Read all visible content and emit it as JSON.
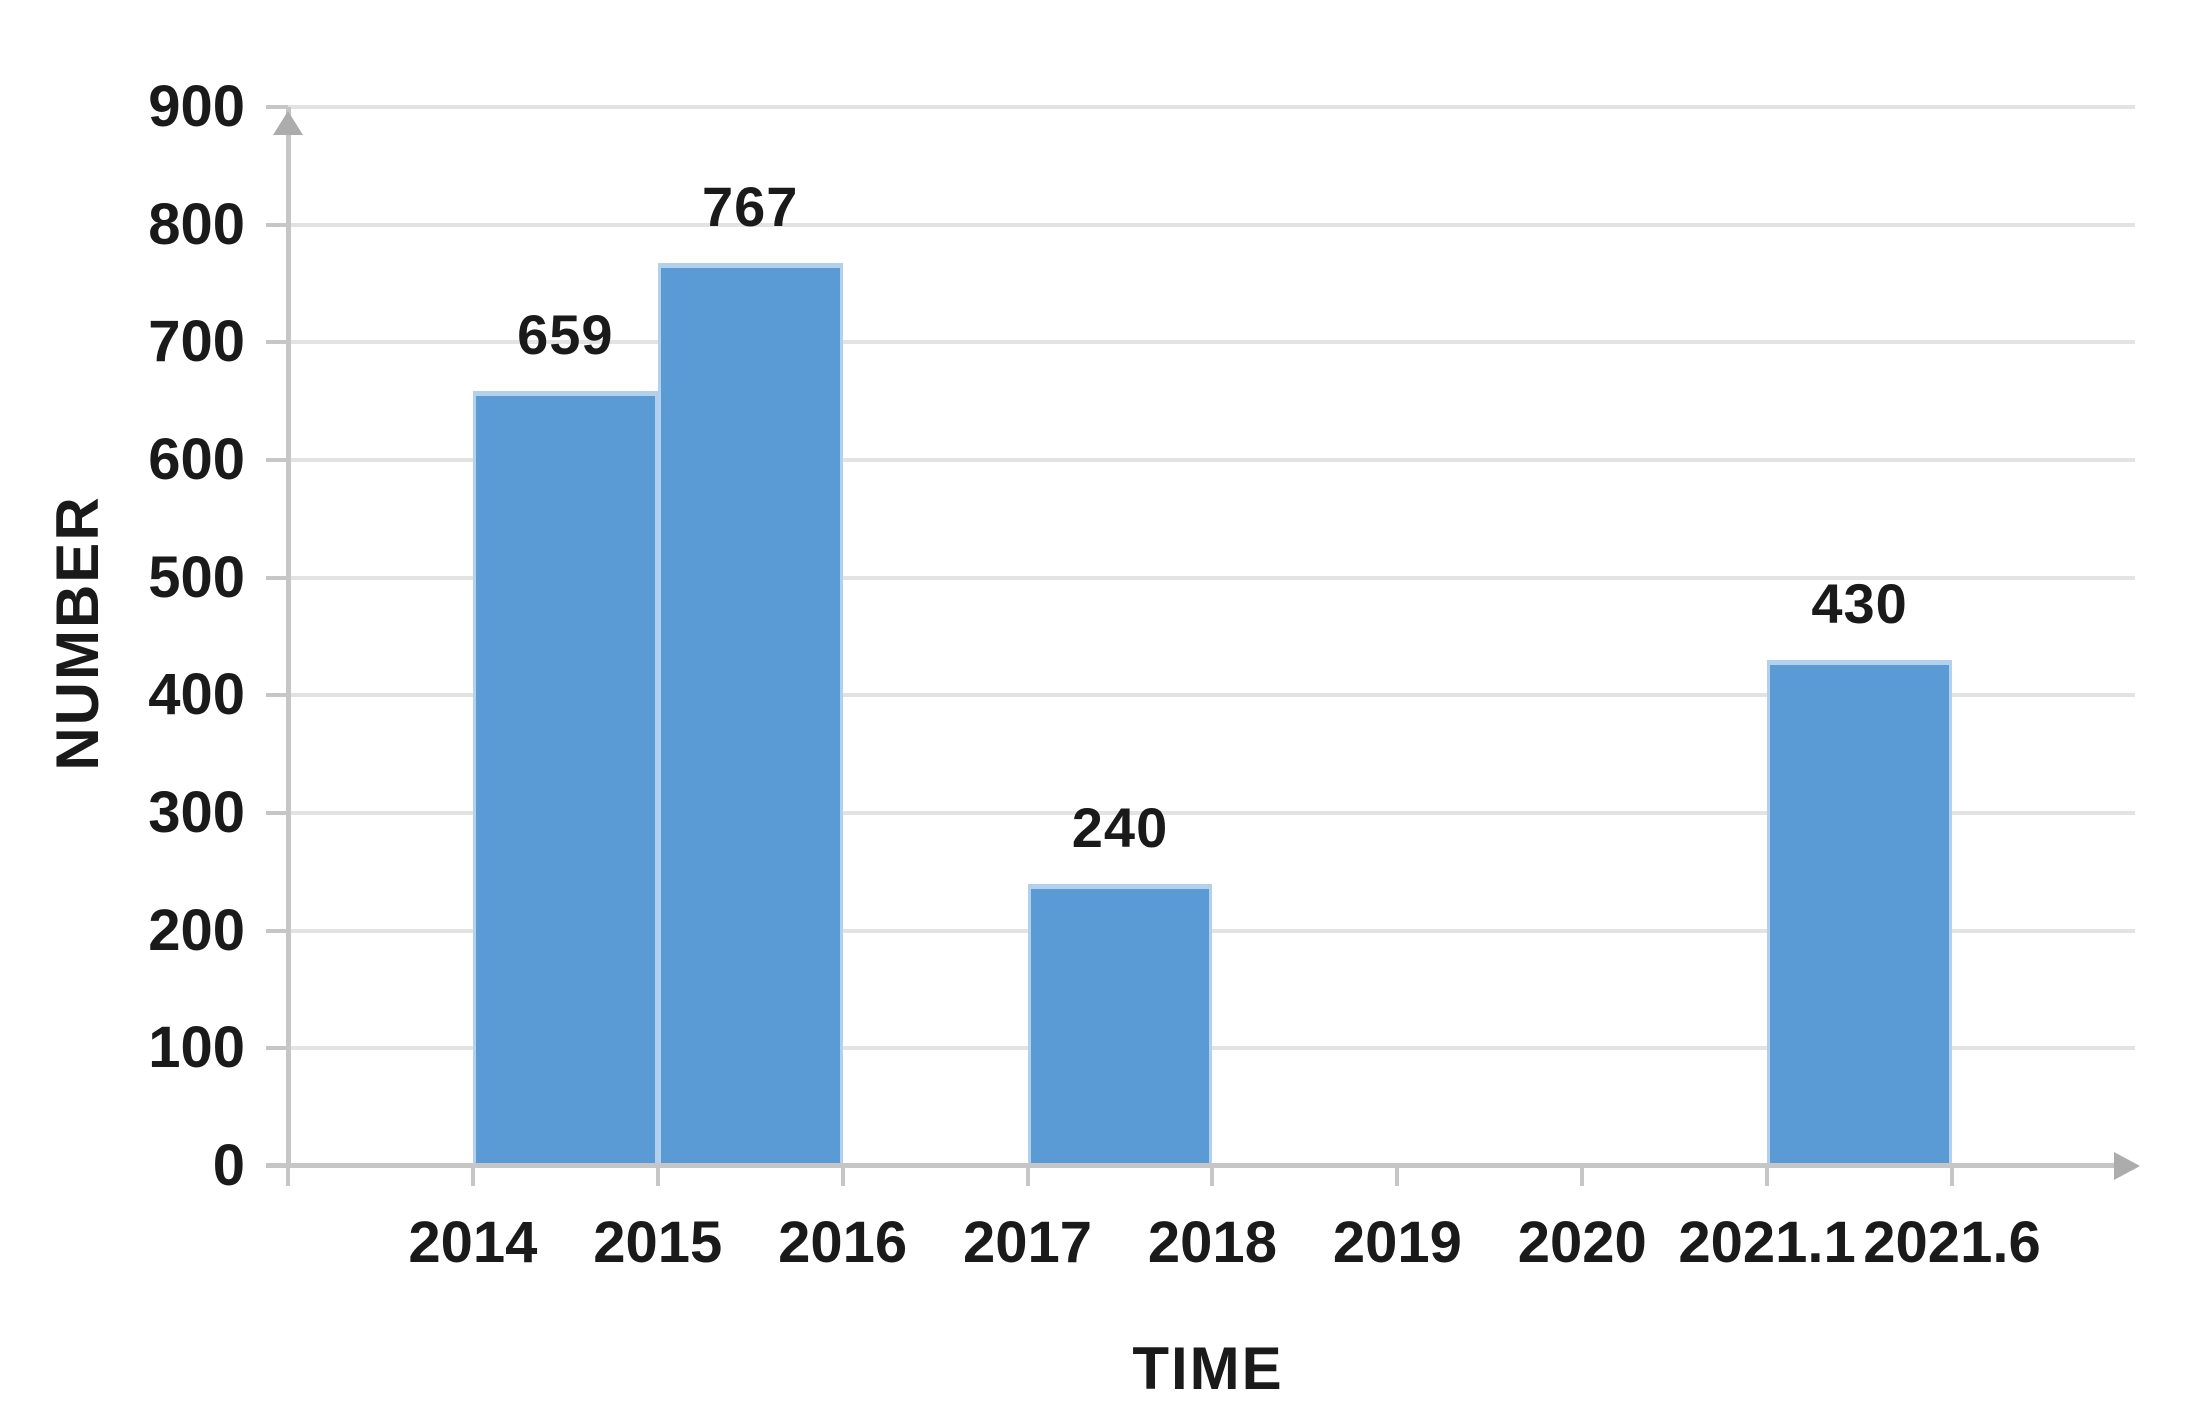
{
  "chart_data": {
    "type": "bar",
    "title": "",
    "xlabel": "TIME",
    "ylabel": "NUMBER",
    "ylim": [
      0,
      900
    ],
    "ytick_step": 100,
    "ytick_labels": [
      "0",
      "100",
      "200",
      "300",
      "400",
      "500",
      "600",
      "700",
      "800",
      "900"
    ],
    "categories": [
      "2014",
      "2015",
      "2016",
      "2017",
      "2018",
      "2019",
      "2020",
      "2021.1",
      "2021.6"
    ],
    "bars": [
      {
        "value": 659,
        "label": "659",
        "span": [
          "2014",
          "2015"
        ]
      },
      {
        "value": 767,
        "label": "767",
        "span": [
          "2015",
          "2016"
        ]
      },
      {
        "value": 240,
        "label": "240",
        "span": [
          "2017",
          "2018"
        ]
      },
      {
        "value": 430,
        "label": "430",
        "span": [
          "2021.1",
          "2021.6"
        ]
      }
    ],
    "grid": true,
    "legend": false,
    "axis_arrows": [
      "y-up",
      "x-right"
    ],
    "colors": {
      "bar_fill": "#5B9BD5",
      "bar_border": "#B3D1ED",
      "gridline": "#E3E3E3",
      "axis": "#C6C6C6",
      "arrow": "#ACACAC",
      "text": "#1A1A1A"
    }
  }
}
